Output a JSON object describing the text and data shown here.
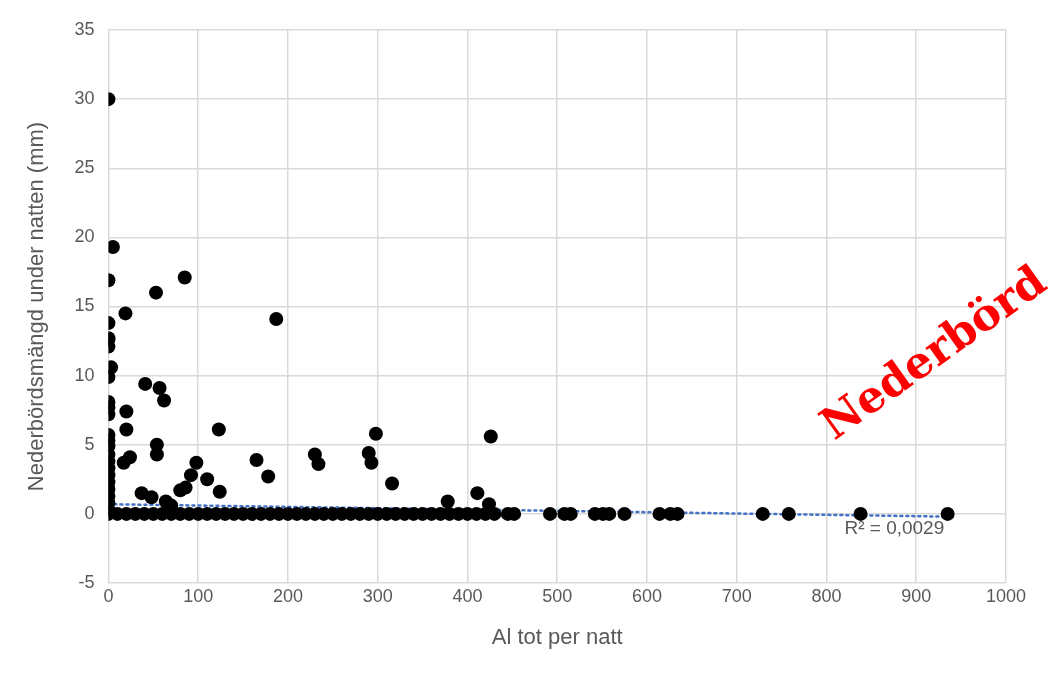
{
  "chart_data": {
    "type": "scatter",
    "xlabel": "Al tot per natt",
    "ylabel": "Nederbördsmängd under natten (mm)",
    "xlim": [
      0,
      1000
    ],
    "xticks": [
      0,
      100,
      200,
      300,
      400,
      500,
      600,
      700,
      800,
      900,
      1000
    ],
    "ylim": [
      -5,
      35
    ],
    "yticks": [
      -5,
      0,
      5,
      10,
      15,
      20,
      25,
      30,
      35
    ],
    "grid": true,
    "legend": false,
    "marker": "circle",
    "annotations": [
      {
        "text": "R² = 0,0029",
        "x": 820,
        "y": 0
      },
      "Nederbörd"
    ],
    "series": [
      {
        "color": "#000000",
        "x": [
          0,
          5,
          0,
          0,
          0,
          0,
          0,
          3,
          0,
          0,
          0,
          0,
          0,
          0,
          0,
          0,
          0,
          0,
          0,
          0,
          0,
          0,
          0,
          0,
          0,
          53,
          85,
          19,
          187,
          41,
          57,
          62,
          20,
          20,
          123,
          54,
          54,
          24,
          17,
          165,
          230,
          234,
          290,
          298,
          293,
          426,
          98,
          92,
          110,
          178,
          86,
          80,
          124,
          316,
          37,
          48,
          64,
          70,
          378,
          411,
          424,
          10,
          20,
          30,
          40,
          50,
          60,
          70,
          80,
          90,
          100,
          110,
          120,
          130,
          140,
          150,
          160,
          170,
          180,
          190,
          200,
          210,
          220,
          230,
          240,
          250,
          260,
          270,
          280,
          290,
          300,
          310,
          320,
          330,
          340,
          350,
          360,
          370,
          380,
          390,
          400,
          410,
          420,
          430,
          445,
          452,
          492,
          508,
          515,
          542,
          551,
          558,
          575,
          614,
          626,
          634,
          729,
          758,
          838,
          935
        ],
        "values": [
          30,
          19.3,
          16.9,
          13.8,
          12.7,
          12.6,
          12.1,
          10.6,
          9.9,
          8.1,
          7.7,
          7.2,
          5.7,
          5.3,
          4.9,
          4.3,
          3.8,
          3.3,
          2.8,
          2.3,
          1.8,
          1.3,
          0.8,
          0.3,
          0,
          16,
          17.1,
          14.5,
          14.1,
          9.4,
          9.1,
          8.2,
          7.4,
          6.1,
          6.1,
          5,
          4.3,
          4.1,
          3.7,
          3.9,
          4.3,
          3.6,
          4.4,
          5.8,
          3.7,
          5.6,
          3.7,
          2.8,
          2.5,
          2.7,
          1.9,
          1.7,
          1.6,
          2.2,
          1.5,
          1.2,
          0.9,
          0.6,
          0.9,
          1.5,
          0.7,
          0,
          0,
          0,
          0,
          0,
          0,
          0,
          0,
          0,
          0,
          0,
          0,
          0,
          0,
          0,
          0,
          0,
          0,
          0,
          0,
          0,
          0,
          0,
          0,
          0,
          0,
          0,
          0,
          0,
          0,
          0,
          0,
          0,
          0,
          0,
          0,
          0,
          0,
          0,
          0,
          0,
          0,
          0,
          0,
          0,
          0,
          0,
          0,
          0,
          0,
          0,
          0,
          0,
          0,
          0,
          0,
          0,
          0,
          0
        ]
      },
      {
        "type": "line",
        "color": "#4472c4",
        "line_style": "dotted",
        "marker": "none",
        "x": [
          0,
          935
        ],
        "values": [
          0.7,
          -0.2
        ]
      }
    ]
  }
}
